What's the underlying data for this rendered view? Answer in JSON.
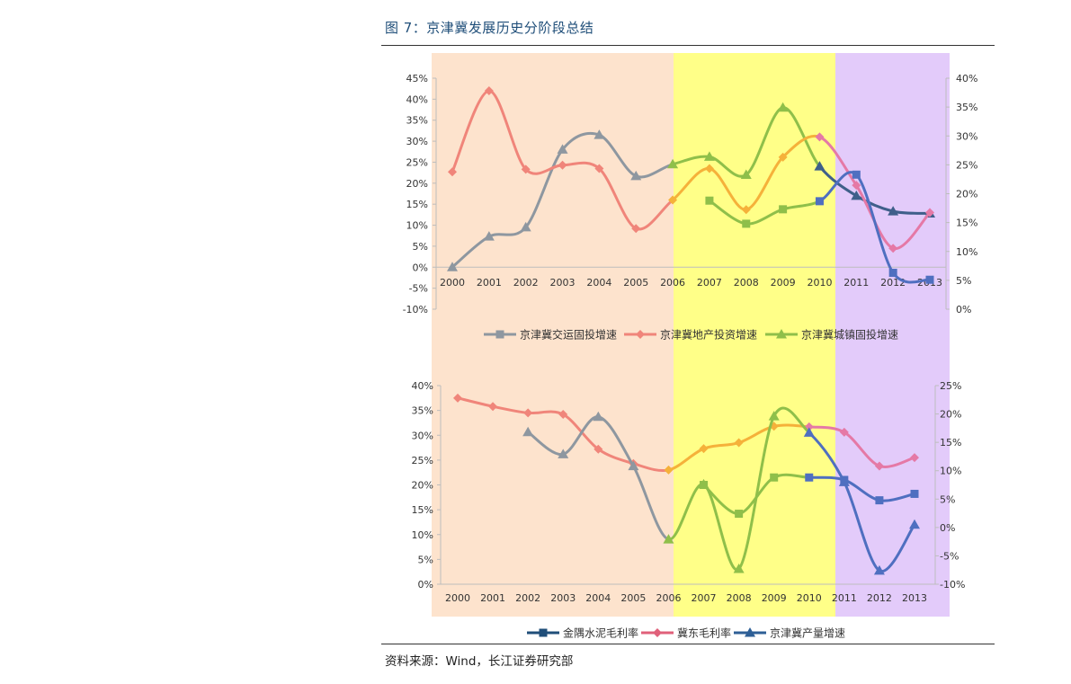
{
  "title": "图 7：京津冀发展历史分阶段总结",
  "source": "资料来源：Wind，长江证券研究部",
  "colors": {
    "phase1": "#fde3cd",
    "phase2": "#ffff88",
    "phase3": "#e3cbfa",
    "gray": "#8e97a0",
    "salmon": "#f0857a",
    "green": "#8fbf4a",
    "orange": "#f5b13a",
    "blue": "#4f6fc0",
    "pink": "#e579a6",
    "slate": "#3f5f8a"
  },
  "chart_data": [
    {
      "type": "line",
      "categories": [
        "2000",
        "2001",
        "2002",
        "2003",
        "2004",
        "2005",
        "2006",
        "2007",
        "2008",
        "2009",
        "2010",
        "2011",
        "2012",
        "2013"
      ],
      "yleft": {
        "range": [
          -10,
          45
        ],
        "ticks": [
          "-10%",
          "-5%",
          "0%",
          "5%",
          "10%",
          "15%",
          "20%",
          "25%",
          "30%",
          "35%",
          "40%",
          "45%"
        ]
      },
      "yright": {
        "range": [
          0,
          40
        ],
        "ticks": [
          "0%",
          "5%",
          "10%",
          "15%",
          "20%",
          "25%",
          "30%",
          "35%",
          "40%"
        ]
      },
      "legend": [
        "京津冀交运固投增速",
        "京津冀地产投资增速",
        "京津冀城镇固投增速"
      ],
      "series": [
        {
          "name": "京津冀城镇固投增速",
          "axis": "left",
          "marker": "triangle",
          "values": [
            0,
            7.3,
            9.5,
            28.0,
            31.5,
            21.7,
            24.5,
            26.3,
            22.0,
            38.0,
            24.0,
            17.0,
            13.3,
            12.8
          ]
        },
        {
          "name": "京津冀地产投资增速",
          "axis": "left",
          "marker": "diamond",
          "values": [
            22.7,
            42.0,
            23.3,
            24.3,
            23.5,
            9.2,
            16.0,
            23.5,
            13.7,
            26.2,
            31.0,
            19.5,
            4.5,
            13.0
          ]
        },
        {
          "name": "京津冀交运固投增速",
          "axis": "right",
          "marker": "square",
          "values": [
            null,
            null,
            null,
            null,
            null,
            null,
            null,
            18.8,
            14.8,
            17.3,
            18.7,
            23.3,
            6.3,
            5.1
          ]
        }
      ]
    },
    {
      "type": "line",
      "categories": [
        "2000",
        "2001",
        "2002",
        "2003",
        "2004",
        "2005",
        "2006",
        "2007",
        "2008",
        "2009",
        "2010",
        "2011",
        "2012",
        "2013"
      ],
      "yleft": {
        "range": [
          0,
          40
        ],
        "ticks": [
          "0%",
          "5%",
          "10%",
          "15%",
          "20%",
          "25%",
          "30%",
          "35%",
          "40%"
        ]
      },
      "yright": {
        "range": [
          -10,
          25
        ],
        "ticks": [
          "-10%",
          "-5%",
          "0%",
          "5%",
          "10%",
          "15%",
          "20%",
          "25%"
        ]
      },
      "legend": [
        "金隅水泥毛利率",
        "冀东毛利率",
        "京津冀产量增速"
      ],
      "series": [
        {
          "name": "冀东毛利率",
          "axis": "left",
          "marker": "diamond",
          "values": [
            37.5,
            35.8,
            34.5,
            34.2,
            27.2,
            24.3,
            23.0,
            27.3,
            28.5,
            31.8,
            31.7,
            30.6,
            23.8,
            25.5
          ]
        },
        {
          "name": "京津冀产量增速",
          "axis": "right",
          "marker": "triangle",
          "values": [
            null,
            null,
            16.8,
            12.9,
            19.5,
            10.8,
            -2.1,
            7.6,
            -7.3,
            19.6,
            16.7,
            8.0,
            -7.6,
            0.5
          ]
        },
        {
          "name": "金隅水泥毛利率",
          "axis": "left",
          "marker": "square",
          "values": [
            null,
            null,
            null,
            null,
            null,
            null,
            null,
            20.0,
            14.2,
            21.5,
            21.5,
            21.0,
            16.9,
            18.2
          ]
        }
      ]
    }
  ]
}
